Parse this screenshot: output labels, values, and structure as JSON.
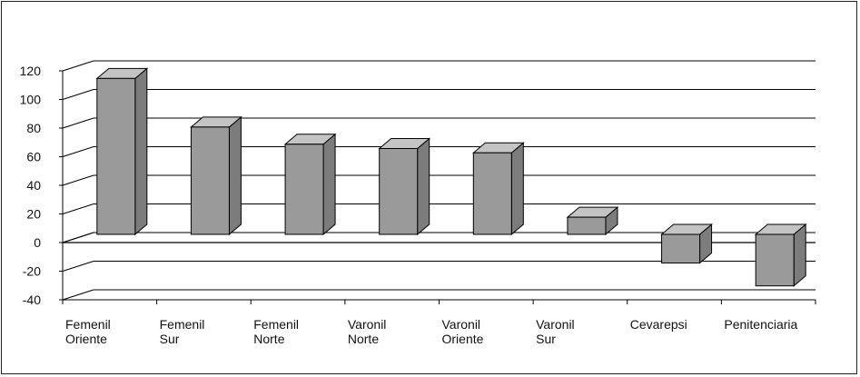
{
  "chart_data": {
    "type": "bar",
    "title": "",
    "xlabel": "",
    "ylabel": "",
    "ylim": [
      -40,
      120
    ],
    "yticks": [
      120,
      100,
      80,
      60,
      40,
      20,
      0,
      -20,
      -40
    ],
    "ytick_labels": [
      "120",
      "100",
      "80",
      "60",
      "40",
      "20",
      "0",
      "-20",
      "-40"
    ],
    "categories": [
      [
        "Femenil",
        "Oriente"
      ],
      [
        "Femenil",
        "Sur"
      ],
      [
        "Femenil",
        "Norte"
      ],
      [
        "Varonil",
        "Norte"
      ],
      [
        "Varonil",
        "Oriente"
      ],
      [
        "Varonil",
        "Sur"
      ],
      [
        "Cevarepsi"
      ],
      [
        "Penitenciaria"
      ]
    ],
    "values": [
      109,
      75,
      63,
      60,
      57,
      12,
      -20,
      -36
    ],
    "grid": true,
    "legend": "none",
    "style": "3d-columns",
    "colors": {
      "bar_front": "#9a9a9a",
      "bar_top": "#c4c4c4",
      "bar_side": "#7c7c7c",
      "grid": "#000000",
      "frame": "#222222"
    }
  }
}
